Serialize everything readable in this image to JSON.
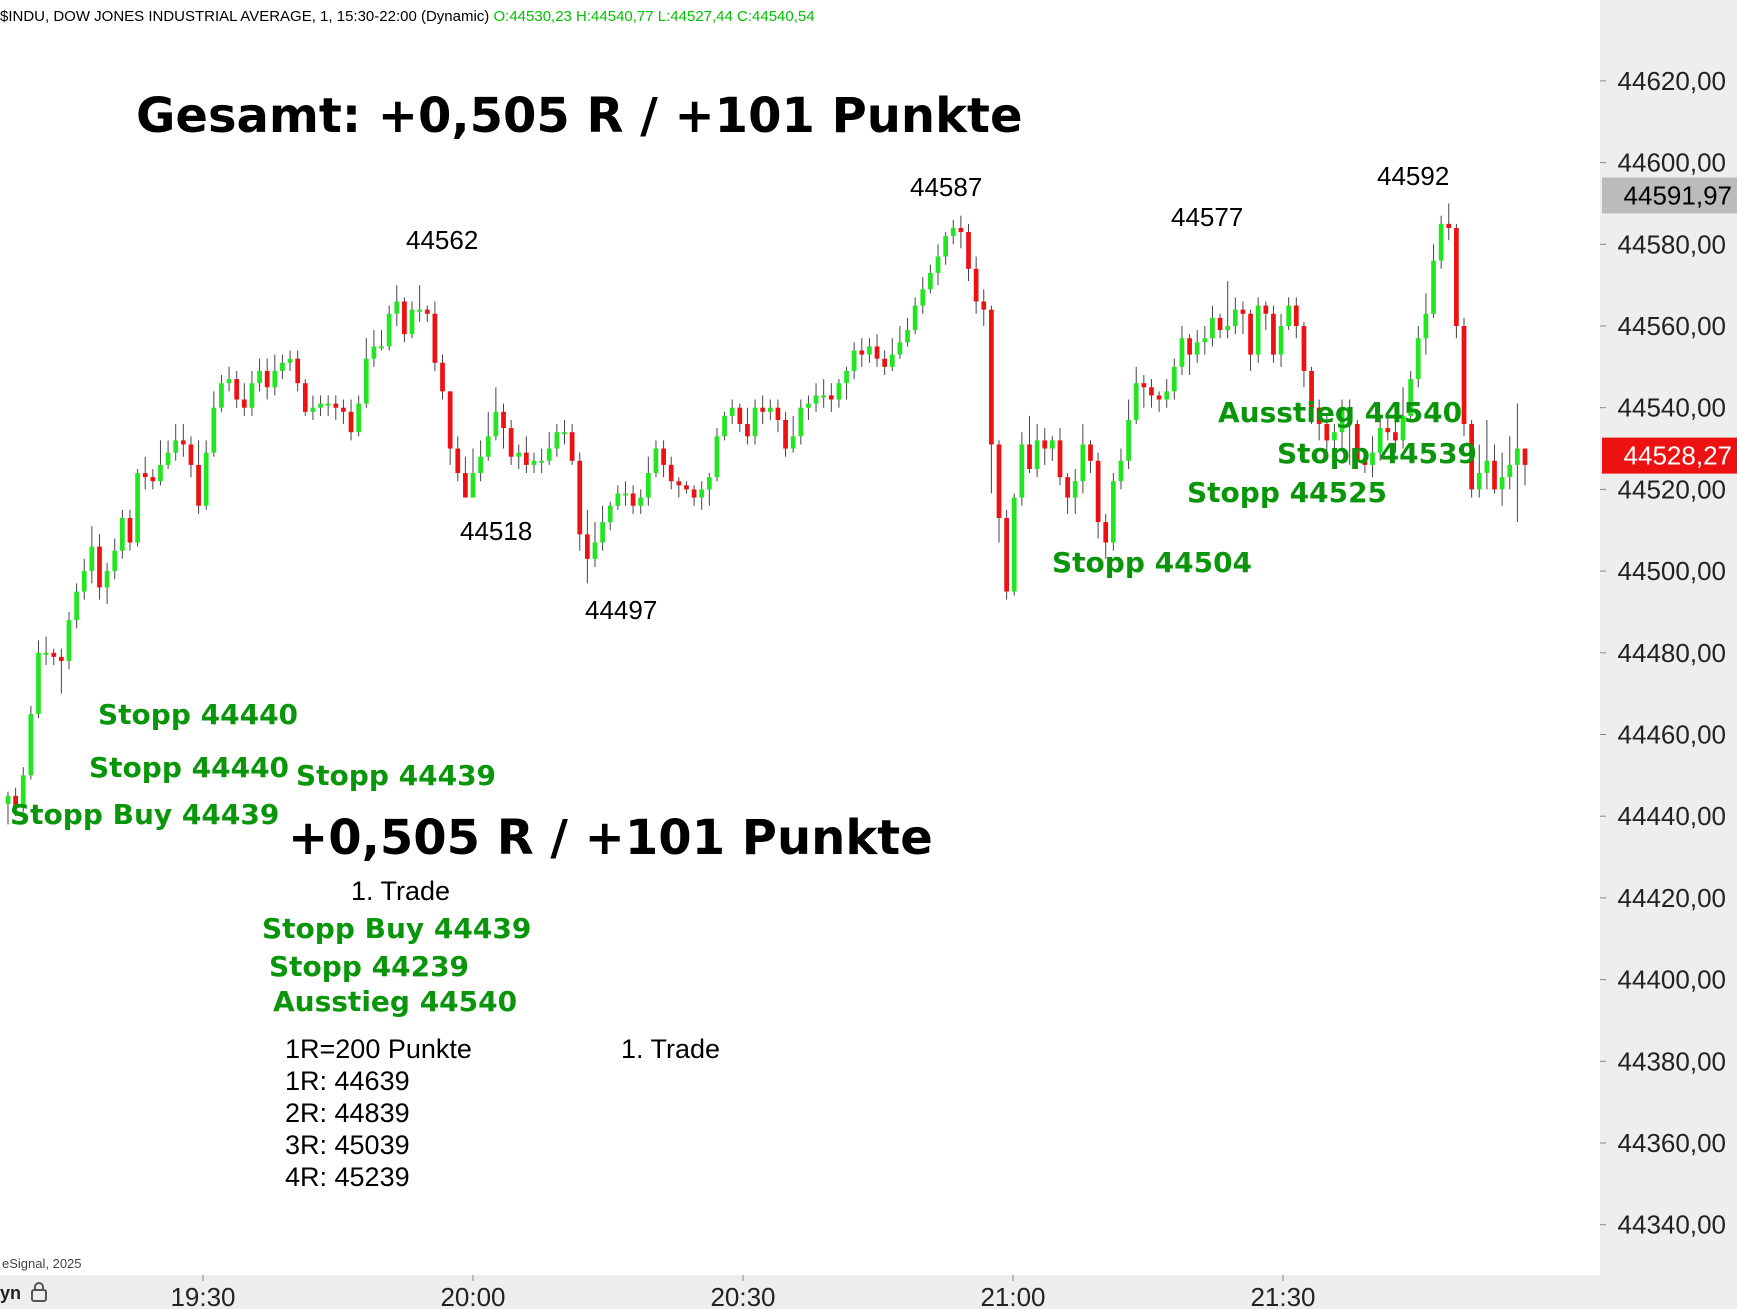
{
  "header": {
    "title": "$INDU, DOW JONES INDUSTRIAL AVERAGE, 1, 15:30-22:00 (Dynamic)",
    "ohlc": "O:44530,23 H:44540,77 L:44527,44 C:44540,54"
  },
  "footer": {
    "copyright": "eSignal, 2025",
    "corner_label": "yn"
  },
  "colors": {
    "up": "#22e622",
    "down": "#ee1111",
    "annotation": "#0a960a",
    "axis_bg": "#eeeeee"
  },
  "annotations": {
    "total": "Gesamt: +0,505 R / +101 Punkte",
    "result": "+0,505 R / +101 Punkte",
    "trade_label": "1. Trade",
    "trade_label_2": "1. Trade",
    "stop_buy": "Stopp Buy 44439",
    "stop_a": "Stopp 44440",
    "stop_b": "Stopp 44440",
    "stop_c": "Stopp 44439",
    "stop_d": "Stopp 44504",
    "stop_e": "Stopp 44525",
    "stop_f": "Stopp 44539",
    "exit_chart": "Ausstieg 44540",
    "summary_stop_buy": "Stopp Buy 44439",
    "summary_stop": "Stopp 44239",
    "summary_exit": "Ausstieg 44540",
    "r_def": "1R=200 Punkte",
    "r1": "1R: 44639",
    "r2": "2R: 44839",
    "r3": "3R: 45039",
    "r4": "4R: 45239"
  },
  "chart_data": {
    "type": "candlestick",
    "title": "$INDU, DOW JONES INDUSTRIAL AVERAGE, 1, 15:30-22:00 (Dynamic)",
    "x_tick_labels": [
      "19:30",
      "20:00",
      "20:30",
      "21:00",
      "21:30"
    ],
    "y_tick_labels": [
      "44620,00",
      "44600,00",
      "44580,00",
      "44560,00",
      "44540,00",
      "44520,00",
      "44500,00",
      "44480,00",
      "44460,00",
      "44440,00",
      "44420,00",
      "44400,00",
      "44380,00",
      "44360,00",
      "44340,00"
    ],
    "ylim": [
      44328,
      44648
    ],
    "price_markers": [
      {
        "label": "44591,97",
        "value": 44591.97,
        "color": "#bbbbbb",
        "text_color": "#000000"
      },
      {
        "label": "44528,27",
        "value": 44528.27,
        "color": "#ee1111",
        "text_color": "#ffffff"
      }
    ],
    "peak_labels": [
      {
        "label": "44562",
        "value": 44562
      },
      {
        "label": "44518",
        "value": 44518
      },
      {
        "label": "44497",
        "value": 44497
      },
      {
        "label": "44587",
        "value": 44587
      },
      {
        "label": "44577",
        "value": 44577
      },
      {
        "label": "44592",
        "value": 44592
      }
    ],
    "candles": [
      [
        44443,
        44445,
        44438,
        44446
      ],
      [
        44445,
        44442,
        44440,
        44447
      ],
      [
        44442,
        44450,
        44441,
        44452
      ],
      [
        44450,
        44465,
        44449,
        44467
      ],
      [
        44465,
        44480,
        44464,
        44483
      ],
      [
        44480,
        44480,
        44477,
        44484
      ],
      [
        44480,
        44479,
        44477,
        44481
      ],
      [
        44479,
        44478,
        44470,
        44481
      ],
      [
        44478,
        44488,
        44476,
        44490
      ],
      [
        44488,
        44495,
        44486,
        44497
      ],
      [
        44495,
        44500,
        44493,
        44503
      ],
      [
        44500,
        44506,
        44497,
        44511
      ],
      [
        44506,
        44496,
        44493,
        44509
      ],
      [
        44496,
        44500,
        44492,
        44502
      ],
      [
        44500,
        44505,
        44498,
        44508
      ],
      [
        44505,
        44513,
        44503,
        44515
      ],
      [
        44513,
        44507,
        44505,
        44515
      ],
      [
        44507,
        44524,
        44506,
        44525
      ],
      [
        44524,
        44523,
        44520,
        44528
      ],
      [
        44523,
        44522,
        44520,
        44525
      ],
      [
        44522,
        44526,
        44521,
        44532
      ],
      [
        44526,
        44529,
        44525,
        44532
      ],
      [
        44529,
        44532,
        44527,
        44536
      ],
      [
        44532,
        44531,
        44528,
        44536
      ],
      [
        44531,
        44526,
        44523,
        44533
      ],
      [
        44526,
        44516,
        44514,
        44532
      ],
      [
        44516,
        44529,
        44515,
        44532
      ],
      [
        44529,
        44540,
        44528,
        44544
      ],
      [
        44540,
        44546,
        44539,
        44548
      ],
      [
        44546,
        44547,
        44544,
        44550
      ],
      [
        44547,
        44542,
        44540,
        44549
      ],
      [
        44542,
        44540,
        44538,
        44546
      ],
      [
        44540,
        44546,
        44538,
        44549
      ],
      [
        44546,
        44549,
        44544,
        44552
      ],
      [
        44549,
        44545,
        44542,
        44552
      ],
      [
        44545,
        44549,
        44543,
        44553
      ],
      [
        44549,
        44551,
        44547,
        44553
      ],
      [
        44551,
        44552,
        44549,
        44554
      ],
      [
        44552,
        44546,
        44544,
        44554
      ],
      [
        44546,
        44539,
        44538,
        44547
      ],
      [
        44539,
        44540,
        44537,
        44543
      ],
      [
        44540,
        44541,
        44538,
        44543
      ],
      [
        44541,
        44541,
        44538,
        44543
      ],
      [
        44541,
        44540,
        44537,
        44543
      ],
      [
        44540,
        44539,
        44536,
        44542
      ],
      [
        44539,
        44534,
        44532,
        44542
      ],
      [
        44534,
        44541,
        44533,
        44543
      ],
      [
        44541,
        44552,
        44540,
        44557
      ],
      [
        44552,
        44555,
        44550,
        44559
      ],
      [
        44555,
        44555,
        44554,
        44559
      ],
      [
        44555,
        44563,
        44554,
        44565
      ],
      [
        44563,
        44566,
        44560,
        44570
      ],
      [
        44566,
        44558,
        44556,
        44567
      ],
      [
        44558,
        44564,
        44557,
        44566
      ],
      [
        44564,
        44564,
        44561,
        44570
      ],
      [
        44564,
        44563,
        44561,
        44565
      ],
      [
        44563,
        44551,
        44549,
        44566
      ],
      [
        44551,
        44544,
        44542,
        44553
      ],
      [
        44544,
        44530,
        44526,
        44544
      ],
      [
        44530,
        44524,
        44522,
        44533
      ],
      [
        44524,
        44518,
        44518,
        44528
      ],
      [
        44518,
        44524,
        44519,
        44530
      ],
      [
        44524,
        44528,
        44522,
        44532
      ],
      [
        44528,
        44533,
        44527,
        44539
      ],
      [
        44533,
        44539,
        44532,
        44545
      ],
      [
        44539,
        44535,
        44530,
        44541
      ],
      [
        44535,
        44528,
        44526,
        44537
      ],
      [
        44528,
        44529,
        44525,
        44531
      ],
      [
        44529,
        44526,
        44524,
        44533
      ],
      [
        44526,
        44527,
        44524,
        44529
      ],
      [
        44527,
        44527,
        44524,
        44530
      ],
      [
        44527,
        44530,
        44526,
        44534
      ],
      [
        44530,
        44534,
        44528,
        44536
      ],
      [
        44534,
        44534,
        44531,
        44537
      ],
      [
        44534,
        44527,
        44526,
        44536
      ],
      [
        44527,
        44509,
        44505,
        44529
      ],
      [
        44509,
        44503,
        44497,
        44515
      ],
      [
        44503,
        44507,
        44501,
        44512
      ],
      [
        44507,
        44512,
        44505,
        44516
      ],
      [
        44512,
        44516,
        44510,
        44517
      ],
      [
        44516,
        44519,
        44515,
        44521
      ],
      [
        44519,
        44519,
        44516,
        44522
      ],
      [
        44519,
        44516,
        44514,
        44521
      ],
      [
        44516,
        44518,
        44514,
        44520
      ],
      [
        44518,
        44524,
        44516,
        44528
      ],
      [
        44524,
        44530,
        44523,
        44532
      ],
      [
        44530,
        44526,
        44523,
        44532
      ],
      [
        44526,
        44522,
        44520,
        44528
      ],
      [
        44522,
        44521,
        44518,
        44523
      ],
      [
        44521,
        44520,
        44519,
        44522
      ],
      [
        44520,
        44518,
        44516,
        44521
      ],
      [
        44518,
        44520,
        44515,
        44522
      ],
      [
        44520,
        44523,
        44516,
        44524
      ],
      [
        44523,
        44533,
        44522,
        44535
      ],
      [
        44533,
        44538,
        44532,
        44539
      ],
      [
        44538,
        44540,
        44536,
        44542
      ],
      [
        44540,
        44536,
        44534,
        44541
      ],
      [
        44536,
        44533,
        44531,
        44540
      ],
      [
        44533,
        44540,
        44531,
        44542
      ],
      [
        44540,
        44539,
        44536,
        44543
      ],
      [
        44539,
        44540,
        44537,
        44542
      ],
      [
        44540,
        44537,
        44534,
        44542
      ],
      [
        44537,
        44530,
        44528,
        44539
      ],
      [
        44530,
        44533,
        44529,
        44538
      ],
      [
        44533,
        44540,
        44531,
        44542
      ],
      [
        44540,
        44541,
        44537,
        44543
      ],
      [
        44541,
        44543,
        44539,
        44546
      ],
      [
        44543,
        44543,
        44540,
        44547
      ],
      [
        44543,
        44542,
        44539,
        44546
      ],
      [
        44542,
        44546,
        44540,
        44547
      ],
      [
        44546,
        44549,
        44542,
        44550
      ],
      [
        44549,
        44554,
        44547,
        44556
      ],
      [
        44554,
        44553,
        44550,
        44557
      ],
      [
        44553,
        44555,
        44551,
        44557
      ],
      [
        44555,
        44552,
        44550,
        44558
      ],
      [
        44552,
        44550,
        44548,
        44554
      ],
      [
        44550,
        44553,
        44549,
        44557
      ],
      [
        44553,
        44556,
        44552,
        44560
      ],
      [
        44556,
        44559,
        44555,
        44562
      ],
      [
        44559,
        44565,
        44558,
        44567
      ],
      [
        44565,
        44569,
        44563,
        44572
      ],
      [
        44569,
        44573,
        44568,
        44575
      ],
      [
        44573,
        44577,
        44570,
        44580
      ],
      [
        44577,
        44582,
        44575,
        44583
      ],
      [
        44582,
        44584,
        44580,
        44586
      ],
      [
        44584,
        44583,
        44579,
        44587
      ],
      [
        44583,
        44574,
        44571,
        44585
      ],
      [
        44574,
        44566,
        44563,
        44577
      ],
      [
        44566,
        44564,
        44560,
        44569
      ],
      [
        44564,
        44531,
        44519,
        44565
      ],
      [
        44531,
        44513,
        44507,
        44532
      ],
      [
        44513,
        44495,
        44493,
        44515
      ],
      [
        44495,
        44518,
        44494,
        44519
      ],
      [
        44518,
        44531,
        44516,
        44534
      ],
      [
        44531,
        44525,
        44524,
        44538
      ],
      [
        44525,
        44532,
        44523,
        44536
      ],
      [
        44532,
        44530,
        44526,
        44535
      ],
      [
        44530,
        44532,
        44527,
        44533
      ],
      [
        44532,
        44523,
        44521,
        44535
      ],
      [
        44523,
        44518,
        44514,
        44524
      ],
      [
        44518,
        44522,
        44514,
        44525
      ],
      [
        44522,
        44531,
        44519,
        44536
      ],
      [
        44531,
        44527,
        44524,
        44532
      ],
      [
        44527,
        44512,
        44508,
        44529
      ],
      [
        44512,
        44507,
        44503,
        44514
      ],
      [
        44507,
        44522,
        44505,
        44524
      ],
      [
        44522,
        44527,
        44520,
        44530
      ],
      [
        44527,
        44537,
        44525,
        44542
      ],
      [
        44537,
        44546,
        44536,
        44550
      ],
      [
        44546,
        44545,
        44540,
        44548
      ],
      [
        44545,
        44543,
        44540,
        44547
      ],
      [
        44543,
        44542,
        44539,
        44544
      ],
      [
        44542,
        44544,
        44540,
        44547
      ],
      [
        44544,
        44550,
        44542,
        44552
      ],
      [
        44550,
        44557,
        44548,
        44560
      ],
      [
        44557,
        44553,
        44548,
        44558
      ],
      [
        44553,
        44556,
        44551,
        44559
      ],
      [
        44556,
        44557,
        44553,
        44560
      ],
      [
        44557,
        44562,
        44555,
        44565
      ],
      [
        44562,
        44559,
        44557,
        44563
      ],
      [
        44559,
        44560,
        44557,
        44571
      ],
      [
        44560,
        44564,
        44558,
        44567
      ],
      [
        44564,
        44563,
        44558,
        44566
      ],
      [
        44563,
        44553,
        44549,
        44564
      ],
      [
        44553,
        44565,
        44551,
        44567
      ],
      [
        44565,
        44563,
        44559,
        44566
      ],
      [
        44563,
        44553,
        44551,
        44565
      ],
      [
        44553,
        44560,
        44550,
        44563
      ],
      [
        44560,
        44565,
        44559,
        44567
      ],
      [
        44565,
        44560,
        44557,
        44567
      ],
      [
        44560,
        44549,
        44545,
        44561
      ],
      [
        44549,
        44540,
        44536,
        44550
      ],
      [
        44540,
        44536,
        44532,
        44542
      ],
      [
        44536,
        44532,
        44528,
        44538
      ],
      [
        44532,
        44534,
        44530,
        44536
      ],
      [
        44534,
        44540,
        44530,
        44542
      ],
      [
        44540,
        44536,
        44526,
        44542
      ],
      [
        44536,
        44527,
        44525,
        44537
      ],
      [
        44527,
        44526,
        44524,
        44530
      ],
      [
        44526,
        44529,
        44523,
        44533
      ],
      [
        44529,
        44535,
        44527,
        44538
      ],
      [
        44535,
        44534,
        44532,
        44538
      ],
      [
        44534,
        44532,
        44529,
        44538
      ],
      [
        44532,
        44538,
        44530,
        44545
      ],
      [
        44538,
        44547,
        44537,
        44549
      ],
      [
        44547,
        44557,
        44545,
        44560
      ],
      [
        44557,
        44563,
        44553,
        44568
      ],
      [
        44563,
        44576,
        44562,
        44580
      ],
      [
        44576,
        44585,
        44574,
        44587
      ],
      [
        44585,
        44584,
        44581,
        44590
      ],
      [
        44584,
        44560,
        44557,
        44585
      ],
      [
        44560,
        44536,
        44533,
        44562
      ],
      [
        44536,
        44520,
        44518,
        44537
      ],
      [
        44520,
        44524,
        44518,
        44531
      ],
      [
        44524,
        44527,
        44520,
        44537
      ],
      [
        44527,
        44520,
        44519,
        44531
      ],
      [
        44520,
        44523,
        44516,
        44529
      ],
      [
        44523,
        44526,
        44520,
        44533
      ],
      [
        44526,
        44530,
        44512,
        44541
      ],
      [
        44530,
        44526,
        44521,
        44530
      ]
    ]
  }
}
